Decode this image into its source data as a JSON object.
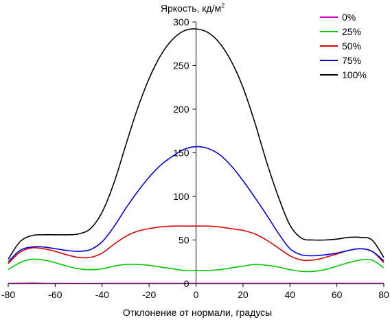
{
  "chart_data": {
    "type": "line",
    "ylabel": "Яркость, кд/м",
    "ylabel_sup": "2",
    "xlabel": "Отклонение от нормали, градусы",
    "xlim": [
      -80,
      80
    ],
    "ylim": [
      0,
      300
    ],
    "x_ticks": [
      -80,
      -60,
      -40,
      -20,
      0,
      20,
      40,
      60,
      80
    ],
    "y_ticks": [
      0,
      50,
      100,
      150,
      200,
      250,
      300
    ],
    "x_tick_labels": [
      "-80",
      "-60",
      "-40",
      "-20",
      "0",
      "20",
      "40",
      "60",
      "80"
    ],
    "y_tick_labels": [
      "0",
      "50",
      "100",
      "150",
      "200",
      "250",
      "300"
    ],
    "grid": false,
    "legend_position": "top-right",
    "series": [
      {
        "name": "0%",
        "color": "#cc00cc",
        "x": [
          -80,
          -70,
          -60,
          -40,
          -20,
          0,
          20,
          40,
          60,
          70,
          80
        ],
        "y": [
          0.3,
          0.6,
          0.3,
          0.3,
          0.3,
          0.3,
          0.3,
          0.3,
          0.3,
          0.3,
          0.3
        ]
      },
      {
        "name": "25%",
        "color": "#00cc00",
        "x": [
          -80,
          -75,
          -70,
          -65,
          -60,
          -55,
          -50,
          -45,
          -40,
          -35,
          -30,
          -25,
          -20,
          -15,
          -10,
          -5,
          0,
          5,
          10,
          15,
          20,
          25,
          30,
          35,
          40,
          45,
          50,
          55,
          60,
          65,
          70,
          75,
          80
        ],
        "y": [
          16,
          24,
          28,
          27,
          24,
          20,
          17,
          16,
          17,
          20,
          22,
          22,
          21,
          19,
          17,
          15,
          15,
          15,
          16,
          18,
          20,
          22,
          21,
          19,
          16,
          14,
          14,
          16,
          20,
          24,
          27,
          27,
          18
        ]
      },
      {
        "name": "50%",
        "color": "#dd0000",
        "x": [
          -80,
          -75,
          -70,
          -65,
          -60,
          -55,
          -50,
          -45,
          -40,
          -35,
          -30,
          -25,
          -20,
          -15,
          -10,
          -5,
          0,
          5,
          10,
          15,
          20,
          25,
          30,
          35,
          40,
          45,
          50,
          55,
          60,
          65,
          70,
          75,
          80
        ],
        "y": [
          23,
          36,
          41,
          40,
          37,
          33,
          30,
          30,
          35,
          45,
          54,
          60,
          63,
          65,
          66,
          66,
          66,
          66,
          65,
          63,
          61,
          57,
          50,
          41,
          32,
          27,
          27,
          30,
          34,
          38,
          40,
          37,
          24
        ]
      },
      {
        "name": "75%",
        "color": "#0000dd",
        "x": [
          -80,
          -75,
          -70,
          -65,
          -60,
          -55,
          -50,
          -45,
          -40,
          -35,
          -30,
          -25,
          -20,
          -15,
          -10,
          -5,
          0,
          5,
          10,
          15,
          20,
          25,
          30,
          35,
          40,
          45,
          50,
          55,
          60,
          65,
          70,
          75,
          80
        ],
        "y": [
          25,
          38,
          42,
          42,
          40,
          38,
          37,
          39,
          48,
          65,
          86,
          105,
          122,
          136,
          146,
          154,
          157,
          155,
          148,
          135,
          118,
          99,
          79,
          58,
          40,
          33,
          32,
          33,
          35,
          38,
          40,
          37,
          26
        ]
      },
      {
        "name": "100%",
        "color": "#000000",
        "x": [
          -80,
          -75,
          -70,
          -65,
          -60,
          -55,
          -50,
          -45,
          -40,
          -35,
          -30,
          -25,
          -20,
          -15,
          -10,
          -5,
          0,
          5,
          10,
          15,
          20,
          25,
          30,
          35,
          40,
          45,
          50,
          55,
          60,
          65,
          70,
          75,
          80
        ],
        "y": [
          28,
          48,
          55,
          56,
          56,
          56,
          57,
          63,
          82,
          115,
          158,
          200,
          235,
          262,
          280,
          290,
          292,
          288,
          276,
          255,
          225,
          185,
          140,
          100,
          67,
          52,
          50,
          50,
          51,
          53,
          53,
          50,
          30
        ]
      }
    ]
  }
}
